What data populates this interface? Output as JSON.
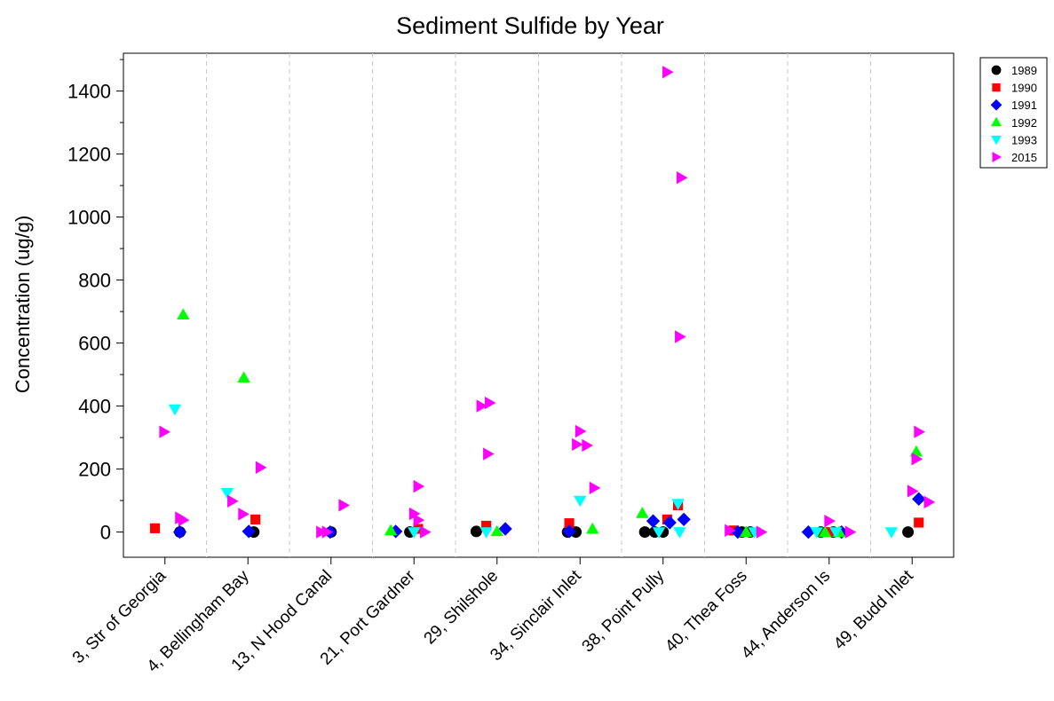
{
  "chart_data": {
    "type": "scatter",
    "title": "Sediment Sulfide by Year",
    "xlabel": "",
    "ylabel": "Concentration (ug/g)",
    "ylim": [
      -80,
      1520
    ],
    "yticks": [
      0,
      200,
      400,
      600,
      800,
      1000,
      1200,
      1400
    ],
    "categories": [
      "3, Str of Georgia",
      "4, Bellingham Bay",
      "13, N Hood Canal",
      "21, Port Gardner",
      "29, Shilshole",
      "34, Sinclair Inlet",
      "38, Point Pully",
      "40, Thea Foss",
      "44, Anderson Is",
      "49, Budd Inlet"
    ],
    "grid": "vertical dashed separators between categories",
    "legend_position": "top-right, outside plot",
    "series": [
      {
        "name": "1989",
        "marker": "circle",
        "color": "#000000",
        "points": [
          {
            "cat": 0,
            "j": 0.18,
            "y": 0
          },
          {
            "cat": 1,
            "j": 0.07,
            "y": 0
          },
          {
            "cat": 2,
            "j": 0.0,
            "y": 0
          },
          {
            "cat": 3,
            "j": -0.05,
            "y": 0
          },
          {
            "cat": 4,
            "j": -0.25,
            "y": 2
          },
          {
            "cat": 5,
            "j": -0.15,
            "y": 0
          },
          {
            "cat": 5,
            "j": -0.05,
            "y": 0
          },
          {
            "cat": 6,
            "j": -0.22,
            "y": 0
          },
          {
            "cat": 6,
            "j": -0.1,
            "y": 0
          },
          {
            "cat": 6,
            "j": 0.0,
            "y": 0
          },
          {
            "cat": 7,
            "j": -0.05,
            "y": 0
          },
          {
            "cat": 7,
            "j": 0.05,
            "y": 0
          },
          {
            "cat": 8,
            "j": -0.1,
            "y": 0
          },
          {
            "cat": 8,
            "j": 0.05,
            "y": 0
          },
          {
            "cat": 9,
            "j": -0.05,
            "y": 0
          }
        ]
      },
      {
        "name": "1990",
        "marker": "square",
        "color": "#ff0000",
        "points": [
          {
            "cat": 0,
            "j": -0.12,
            "y": 12
          },
          {
            "cat": 1,
            "j": 0.09,
            "y": 40
          },
          {
            "cat": 3,
            "j": 0.05,
            "y": 10
          },
          {
            "cat": 4,
            "j": -0.13,
            "y": 20
          },
          {
            "cat": 5,
            "j": -0.13,
            "y": 28
          },
          {
            "cat": 6,
            "j": 0.05,
            "y": 40
          },
          {
            "cat": 6,
            "j": 0.18,
            "y": 85
          },
          {
            "cat": 7,
            "j": -0.15,
            "y": 5
          },
          {
            "cat": 8,
            "j": 0.0,
            "y": 0
          },
          {
            "cat": 9,
            "j": 0.08,
            "y": 30
          }
        ]
      },
      {
        "name": "1991",
        "marker": "diamond",
        "color": "#0000ff",
        "points": [
          {
            "cat": 0,
            "j": 0.18,
            "y": 0
          },
          {
            "cat": 1,
            "j": 0.01,
            "y": 2
          },
          {
            "cat": 2,
            "j": -0.01,
            "y": 0
          },
          {
            "cat": 3,
            "j": -0.22,
            "y": 2
          },
          {
            "cat": 4,
            "j": 0.1,
            "y": 10
          },
          {
            "cat": 5,
            "j": -0.13,
            "y": 2
          },
          {
            "cat": 6,
            "j": -0.12,
            "y": 35
          },
          {
            "cat": 6,
            "j": 0.08,
            "y": 30
          },
          {
            "cat": 6,
            "j": 0.25,
            "y": 40
          },
          {
            "cat": 7,
            "j": -0.1,
            "y": 0
          },
          {
            "cat": 8,
            "j": -0.25,
            "y": 0
          },
          {
            "cat": 8,
            "j": 0.15,
            "y": 0
          },
          {
            "cat": 9,
            "j": 0.08,
            "y": 105
          }
        ]
      },
      {
        "name": "1992",
        "marker": "triangle-up",
        "color": "#00ff00",
        "points": [
          {
            "cat": 0,
            "j": 0.22,
            "y": 690
          },
          {
            "cat": 1,
            "j": -0.05,
            "y": 490
          },
          {
            "cat": 3,
            "j": -0.28,
            "y": 5
          },
          {
            "cat": 4,
            "j": 0.0,
            "y": 2
          },
          {
            "cat": 5,
            "j": 0.15,
            "y": 10
          },
          {
            "cat": 6,
            "j": -0.25,
            "y": 60
          },
          {
            "cat": 7,
            "j": 0.0,
            "y": 0
          },
          {
            "cat": 8,
            "j": -0.05,
            "y": 0
          },
          {
            "cat": 8,
            "j": 0.12,
            "y": 0
          },
          {
            "cat": 9,
            "j": 0.05,
            "y": 255
          }
        ]
      },
      {
        "name": "1993",
        "marker": "triangle-down",
        "color": "#00ffff",
        "points": [
          {
            "cat": 0,
            "j": 0.12,
            "y": 390
          },
          {
            "cat": 1,
            "j": -0.25,
            "y": 125
          },
          {
            "cat": 3,
            "j": 0.0,
            "y": 0
          },
          {
            "cat": 4,
            "j": -0.13,
            "y": 0
          },
          {
            "cat": 5,
            "j": 0.0,
            "y": 100
          },
          {
            "cat": 6,
            "j": -0.05,
            "y": 0
          },
          {
            "cat": 6,
            "j": 0.18,
            "y": 90
          },
          {
            "cat": 6,
            "j": 0.2,
            "y": 0
          },
          {
            "cat": 7,
            "j": 0.1,
            "y": 0
          },
          {
            "cat": 8,
            "j": -0.15,
            "y": 0
          },
          {
            "cat": 8,
            "j": 0.08,
            "y": 0
          },
          {
            "cat": 9,
            "j": -0.25,
            "y": 0
          }
        ]
      },
      {
        "name": "2015",
        "marker": "triangle-right",
        "color": "#ff00ff",
        "points": [
          {
            "cat": 0,
            "j": -0.01,
            "y": 318
          },
          {
            "cat": 0,
            "j": 0.18,
            "y": 45
          },
          {
            "cat": 0,
            "j": 0.22,
            "y": 38
          },
          {
            "cat": 1,
            "j": -0.19,
            "y": 98
          },
          {
            "cat": 1,
            "j": -0.06,
            "y": 57
          },
          {
            "cat": 1,
            "j": 0.15,
            "y": 205
          },
          {
            "cat": 2,
            "j": -0.12,
            "y": 0
          },
          {
            "cat": 2,
            "j": -0.05,
            "y": 0
          },
          {
            "cat": 2,
            "j": 0.15,
            "y": 85
          },
          {
            "cat": 3,
            "j": 0.05,
            "y": 145
          },
          {
            "cat": 3,
            "j": 0.0,
            "y": 58
          },
          {
            "cat": 3,
            "j": 0.05,
            "y": 38
          },
          {
            "cat": 3,
            "j": 0.13,
            "y": 0
          },
          {
            "cat": 4,
            "j": -0.19,
            "y": 400
          },
          {
            "cat": 4,
            "j": -0.09,
            "y": 410
          },
          {
            "cat": 4,
            "j": -0.11,
            "y": 248
          },
          {
            "cat": 5,
            "j": -0.04,
            "y": 278
          },
          {
            "cat": 5,
            "j": 0.0,
            "y": 320
          },
          {
            "cat": 5,
            "j": 0.08,
            "y": 275
          },
          {
            "cat": 5,
            "j": 0.17,
            "y": 140
          },
          {
            "cat": 6,
            "j": 0.05,
            "y": 1460
          },
          {
            "cat": 6,
            "j": 0.22,
            "y": 1125
          },
          {
            "cat": 6,
            "j": 0.2,
            "y": 620
          },
          {
            "cat": 7,
            "j": -0.2,
            "y": 5
          },
          {
            "cat": 7,
            "j": 0.18,
            "y": 0
          },
          {
            "cat": 8,
            "j": 0.0,
            "y": 35
          },
          {
            "cat": 8,
            "j": 0.25,
            "y": 0
          },
          {
            "cat": 9,
            "j": 0.0,
            "y": 130
          },
          {
            "cat": 9,
            "j": 0.05,
            "y": 232
          },
          {
            "cat": 9,
            "j": 0.08,
            "y": 318
          },
          {
            "cat": 9,
            "j": 0.2,
            "y": 95
          }
        ]
      }
    ]
  }
}
